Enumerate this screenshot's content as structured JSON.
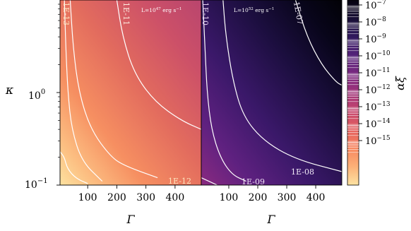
{
  "chart_data": [
    {
      "type": "heatmap",
      "panel": "left",
      "annotation": {
        "base": "L=10",
        "exp": "47",
        "unit": " erg s",
        "unit_exp": "−1"
      },
      "xlabel": "Γ",
      "ylabel": "κ",
      "xlim": [
        5,
        490
      ],
      "ylim": [
        0.1,
        10
      ],
      "yscale": "log",
      "x_ticks": [
        100,
        200,
        300,
        400
      ],
      "y_ticks": [
        {
          "value": 1,
          "base": "10",
          "exp": "0"
        },
        {
          "value": 0.1,
          "base": "10",
          "exp": "−1"
        }
      ],
      "contours": [
        {
          "level": "1E-13",
          "label": "1E-13",
          "points": [
            [
              20,
              10
            ],
            [
              25,
              3
            ],
            [
              32,
              1
            ],
            [
              45,
              0.4
            ],
            [
              80,
              0.18
            ],
            [
              150,
              0.11
            ]
          ]
        },
        {
          "level": "1E-12",
          "label": "1E-12",
          "points": [
            [
              5,
              0.23
            ],
            [
              20,
              0.2
            ],
            [
              30,
              0.15
            ],
            [
              60,
              0.118
            ],
            [
              100,
              0.104
            ]
          ]
        },
        {
          "level": "1E-12",
          "label": "1E-12",
          "points": [
            [
              40,
              10
            ],
            [
              50,
              3
            ],
            [
              70,
              1
            ],
            [
              110,
              0.4
            ],
            [
              180,
              0.2
            ],
            [
              230,
              0.16
            ],
            [
              340,
              0.12
            ]
          ]
        },
        {
          "level": "1E-11",
          "label": "1E-11",
          "points": [
            [
              200,
              10
            ],
            [
              220,
              4
            ],
            [
              260,
              1.6
            ],
            [
              330,
              0.8
            ],
            [
              420,
              0.5
            ],
            [
              490,
              0.4
            ]
          ]
        }
      ]
    },
    {
      "type": "heatmap",
      "panel": "right",
      "annotation": {
        "base": "L=10",
        "exp": "52",
        "unit": " erg s",
        "unit_exp": "−1"
      },
      "xlabel": "Γ",
      "xlim": [
        5,
        490
      ],
      "ylim": [
        0.1,
        10
      ],
      "yscale": "log",
      "x_ticks": [
        100,
        200,
        300,
        400
      ],
      "contours": [
        {
          "level": "1E-10",
          "label": "1E-10",
          "points": [
            [
              10,
              10
            ],
            [
              18,
              3
            ],
            [
              25,
              1
            ],
            [
              40,
              0.4
            ],
            [
              70,
              0.2
            ],
            [
              110,
              0.13
            ],
            [
              160,
              0.11
            ]
          ]
        },
        {
          "level": "1E-09",
          "label": "1E-09",
          "points": [
            [
              80,
              10
            ],
            [
              90,
              4
            ],
            [
              115,
              1.3
            ],
            [
              150,
              0.55
            ],
            [
              220,
              0.3
            ],
            [
              330,
              0.19
            ],
            [
              490,
              0.14
            ]
          ]
        },
        {
          "level": "1E-08",
          "label": "1E-08",
          "points": [
            [
              5,
              0.12
            ],
            [
              60,
              0.1
            ]
          ]
        },
        {
          "level": "1E-07",
          "label": "1E-07",
          "points": [
            [
              330,
              10
            ],
            [
              370,
              4
            ],
            [
              420,
              2
            ],
            [
              470,
              1.3
            ],
            [
              490,
              1.2
            ]
          ]
        }
      ]
    }
  ],
  "colorbar": {
    "label": "αξ",
    "ticks": [
      {
        "base": "10",
        "exp": "−7"
      },
      {
        "base": "10",
        "exp": "−8"
      },
      {
        "base": "10",
        "exp": "−9"
      },
      {
        "base": "10",
        "exp": "−10"
      },
      {
        "base": "10",
        "exp": "−11"
      },
      {
        "base": "10",
        "exp": "−12"
      },
      {
        "base": "10",
        "exp": "−13"
      },
      {
        "base": "10",
        "exp": "−14"
      },
      {
        "base": "10",
        "exp": "−15"
      }
    ],
    "colormap": "magma_r",
    "colormap_stops": [
      "#fde3a2",
      "#fcb178",
      "#f7875f",
      "#e4615f",
      "#c5466e",
      "#a0357a",
      "#7a2980",
      "#55237a",
      "#32195e",
      "#170e35",
      "#05030f"
    ]
  },
  "contour_labels": {
    "left": {
      "c0": "1E-13",
      "c1": "1E-11",
      "c2": "1E-12"
    },
    "right": {
      "c0": "1E-10",
      "c1": "1E-07",
      "c2": "1E-09",
      "c3": "1E-08"
    }
  }
}
